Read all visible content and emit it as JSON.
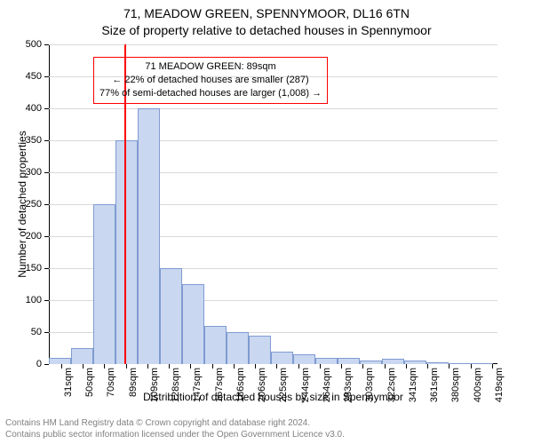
{
  "header": {
    "address": "71, MEADOW GREEN, SPENNYMOOR, DL16 6TN",
    "subtitle": "Size of property relative to detached houses in Spennymoor"
  },
  "axes": {
    "x_label": "Distribution of detached houses by size in Spennymoor",
    "y_label": "Number of detached properties"
  },
  "chart": {
    "type": "histogram",
    "background_color": "#ffffff",
    "axis_color": "#000000",
    "grid_color": "#d9d9d9",
    "bar_fill": "#c9d7f0",
    "bar_stroke": "#7f9bd1",
    "title_fontsize": 14,
    "label_fontsize": 12,
    "tick_fontsize": 11,
    "x_min": 20,
    "x_max": 424,
    "ylim": [
      0,
      500
    ],
    "ytick_step": 50,
    "x_tick_start": 31,
    "x_tick_step": 19.4,
    "x_tick_count": 21,
    "x_tick_unit": "sqm",
    "bin_width_sqm": 20,
    "bin_start": 20,
    "bin_values": [
      10,
      25,
      250,
      350,
      400,
      150,
      125,
      60,
      50,
      45,
      20,
      15,
      10,
      10,
      5,
      8,
      5,
      3,
      2,
      2,
      0
    ],
    "bar_width_ratio": 1.0
  },
  "marker": {
    "value_sqm": 89,
    "line_color": "#ff0000",
    "line_width": 2
  },
  "annotation": {
    "lines": [
      "71 MEADOW GREEN: 89sqm",
      "← 22% of detached houses are smaller (287)",
      "77% of semi-detached houses are larger (1,008) →"
    ],
    "border_color": "#ff0000",
    "text_color": "#000000",
    "fontsize": 11,
    "pos_y_value": 480,
    "anchor_x_sqm": 60
  },
  "footer": {
    "line1": "Contains HM Land Registry data © Crown copyright and database right 2024.",
    "line2": "Contains public sector information licensed under the Open Government Licence v3.0."
  }
}
